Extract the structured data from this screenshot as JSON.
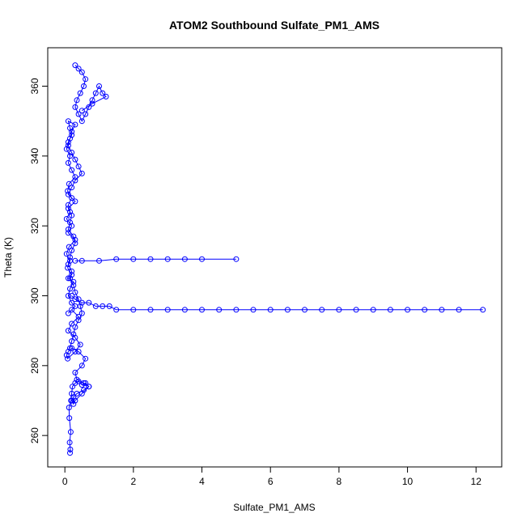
{
  "chart_data": {
    "type": "scatter",
    "title": "ATOM2 Southbound Sulfate_PM1_AMS",
    "xlabel": "Sulfate_PM1_AMS",
    "ylabel": "Theta (K)",
    "xlim": [
      -0.5,
      12.75
    ],
    "ylim": [
      251,
      371
    ],
    "xticks": [
      0,
      2,
      4,
      6,
      8,
      10,
      12
    ],
    "yticks": [
      260,
      280,
      300,
      320,
      340,
      360
    ],
    "grid": false,
    "color": "#0000ff",
    "marker": "open-circle",
    "connected": true,
    "series": [
      {
        "x": [
          0.15,
          0.16,
          0.14,
          0.17,
          0.13,
          0.12,
          0.18,
          0.2,
          0.22,
          0.3,
          0.4,
          0.5,
          0.6,
          0.7,
          0.55,
          0.35,
          0.25,
          0.2,
          0.25,
          0.3,
          0.5,
          0.7,
          0.55,
          0.35,
          0.3,
          0.5,
          0.6,
          0.4,
          0.2,
          0.1,
          0.05,
          0.08,
          0.3,
          0.45,
          0.3,
          0.1,
          0.2,
          0.4,
          0.2,
          0.1,
          0.3,
          0.2,
          0.1,
          0.15,
          0.25,
          0.1,
          0.2,
          0.08,
          0.15,
          0.05,
          0.12,
          0.3,
          0.1,
          0.2,
          0.05,
          0.15,
          0.1,
          0.2,
          0.08,
          0.12,
          0.3,
          0.2,
          0.1,
          0.15,
          0.05,
          0.1,
          0.2,
          0.15,
          0.1,
          0.3,
          0.2,
          0.15,
          0.1,
          0.2,
          0.3,
          0.4,
          0.5,
          0.3,
          0.2,
          0.1,
          0.3,
          0.1,
          0.2,
          0.15,
          0.1,
          0.25,
          0.3,
          0.2,
          0.15,
          0.1,
          0.2,
          0.15,
          0.25,
          0.3,
          0.4,
          0.45,
          0.5,
          0.4,
          0.3,
          0.25,
          0.2,
          0.15
        ],
        "y": [
          255,
          256,
          258,
          261,
          265,
          268,
          270,
          272,
          274,
          275,
          275.5,
          274.5,
          275,
          274,
          273,
          272,
          271,
          270,
          269,
          270,
          272,
          274,
          275,
          276,
          278,
          280,
          282,
          284,
          285,
          284,
          283,
          282,
          284,
          286,
          288,
          290,
          292,
          294,
          296,
          295,
          297,
          298,
          300,
          302,
          304,
          305,
          306,
          308,
          310,
          312,
          314,
          316,
          318,
          320,
          322,
          324,
          326,
          328,
          330,
          332,
          334,
          336,
          338,
          340,
          342,
          344,
          346,
          348,
          350,
          349,
          347,
          345,
          343,
          341,
          339,
          337,
          335,
          333,
          331,
          329,
          327,
          325,
          323,
          321,
          319,
          317,
          315,
          313,
          311,
          309,
          307,
          305,
          303,
          301,
          299,
          297,
          295,
          293,
          291,
          289,
          287,
          285
        ]
      },
      {
        "x": [
          0.2,
          0.3,
          0.5,
          0.7,
          0.9,
          1.1,
          1.3,
          1.5,
          2.0,
          2.5,
          3.0,
          3.5,
          4.0,
          4.5,
          5.0,
          5.5,
          6.0,
          6.5,
          7.0,
          7.5,
          8.0,
          8.5,
          9.0,
          9.5,
          10.0,
          10.5,
          11.0,
          11.5,
          12.2
        ],
        "y": [
          300,
          299,
          298,
          298,
          297,
          297,
          297,
          296,
          296,
          296,
          296,
          296,
          296,
          296,
          296,
          296,
          296,
          296,
          296,
          296,
          296,
          296,
          296,
          296,
          296,
          296,
          296,
          296,
          296
        ]
      },
      {
        "x": [
          0.3,
          0.5,
          1.0,
          1.5,
          2.0,
          2.5,
          3.0,
          3.5,
          4.0,
          5.0
        ],
        "y": [
          310,
          310,
          310,
          310.5,
          310.5,
          310.5,
          310.5,
          310.5,
          310.5,
          310.5
        ]
      },
      {
        "x": [
          0.3,
          0.4,
          0.5,
          0.6,
          0.55,
          0.45,
          0.35,
          0.3,
          0.4,
          0.5,
          0.6,
          0.7,
          0.8,
          0.9,
          1.0,
          1.1,
          1.2,
          0.8,
          0.5
        ],
        "y": [
          366,
          365,
          364,
          362,
          360,
          358,
          356,
          354,
          352,
          350,
          352,
          354,
          356,
          358,
          360,
          358,
          357,
          355,
          353
        ]
      }
    ]
  }
}
